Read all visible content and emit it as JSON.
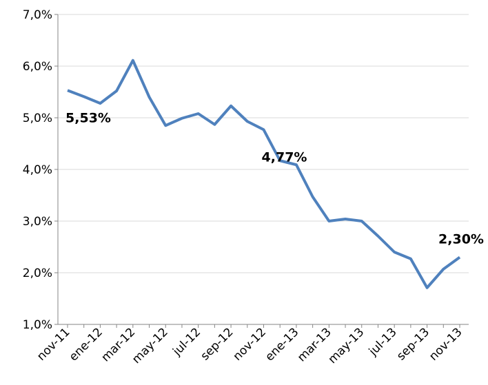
{
  "chart_data": {
    "type": "line",
    "categories": [
      "nov-11",
      null,
      "ene-12",
      null,
      "mar-12",
      null,
      "may-12",
      null,
      "jul-12",
      null,
      "sep-12",
      null,
      "nov-12",
      null,
      "ene-13",
      null,
      "mar-13",
      null,
      "may-13",
      null,
      "jul-13",
      null,
      "sep-13",
      null,
      "nov-13"
    ],
    "series": [
      {
        "color": "#4f81bd",
        "values": [
          5.53,
          5.41,
          5.28,
          5.52,
          6.11,
          5.4,
          4.85,
          4.99,
          5.08,
          4.87,
          5.23,
          4.93,
          4.77,
          4.17,
          4.09,
          3.47,
          3.0,
          3.04,
          3.0,
          2.71,
          2.4,
          2.27,
          1.71,
          2.07,
          2.3
        ],
        "value_labels": [
          "5,53%",
          null,
          null,
          null,
          null,
          null,
          null,
          null,
          null,
          null,
          null,
          null,
          "4,77%",
          null,
          null,
          null,
          null,
          null,
          null,
          null,
          null,
          null,
          null,
          null,
          "2,30%"
        ]
      }
    ],
    "ylim": [
      1,
      7
    ],
    "yticks": [
      {
        "value": 1,
        "label": "1,0%"
      },
      {
        "value": 2,
        "label": "2,0%"
      },
      {
        "value": 3,
        "label": "3,0%"
      },
      {
        "value": 4,
        "label": "4,0%"
      },
      {
        "value": 5,
        "label": "5,0%"
      },
      {
        "value": 6,
        "label": "6,0%"
      },
      {
        "value": 7,
        "label": "7,0%"
      }
    ],
    "grid": true
  }
}
